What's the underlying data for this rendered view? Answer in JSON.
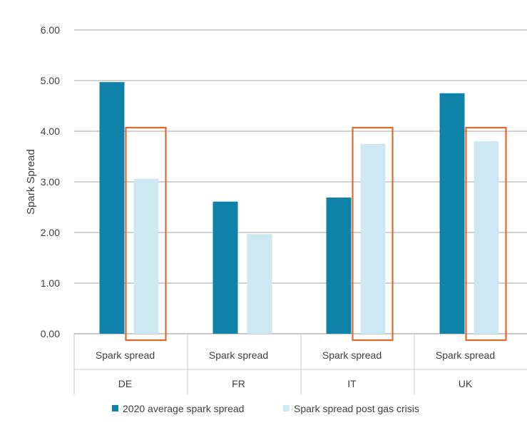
{
  "chart_data": {
    "type": "bar",
    "groups": [
      "DE",
      "FR",
      "IT",
      "UK"
    ],
    "category_label": "Spark spread",
    "ylabel": "Spark Spread",
    "ylim": [
      0,
      6
    ],
    "y_ticks": [
      "0.00",
      "1.00",
      "2.00",
      "3.00",
      "4.00",
      "5.00",
      "6.00"
    ],
    "series": [
      {
        "name": "2020 average spark spread",
        "values": [
          4.97,
          2.61,
          2.69,
          4.75
        ],
        "color": "#0f82aa"
      },
      {
        "name": "Spark spread post gas crisis",
        "values": [
          3.06,
          1.97,
          3.75,
          3.8
        ],
        "color": "#cde8f1"
      }
    ],
    "highlight_groups": [
      "DE",
      "IT",
      "UK"
    ],
    "highlight_color": "#e06a2a",
    "grid": true,
    "legend": "bottom"
  }
}
